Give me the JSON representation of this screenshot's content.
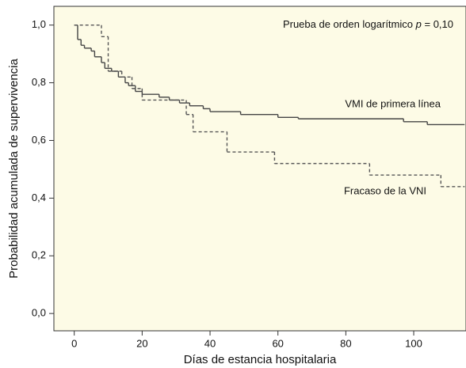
{
  "chart_data": {
    "type": "step",
    "xlabel": "Días de estancia hospitalaria",
    "ylabel": "Probabilidad acumulada de supervivencia",
    "annotation": {
      "text": "Prueba de orden logarítmico",
      "p_symbol": "p",
      "p_text": "= 0,10"
    },
    "xlim": [
      -6,
      115.4
    ],
    "ylim": [
      -0.06,
      1.065
    ],
    "xticks": [
      0,
      20,
      40,
      60,
      80,
      100
    ],
    "yticks": [
      {
        "value": 0,
        "label": "0,0"
      },
      {
        "value": 0.2,
        "label": "0,2"
      },
      {
        "value": 0.4,
        "label": "0,4"
      },
      {
        "value": 0.6,
        "label": "0,6"
      },
      {
        "value": 0.8,
        "label": "0,8"
      },
      {
        "value": 1,
        "label": "1,0"
      }
    ],
    "background": "#fdfbe6",
    "series": [
      {
        "name": "VMI de primera línea",
        "color": "#444444",
        "dashed": false,
        "x": [
          0,
          1,
          2,
          3,
          5,
          6,
          8,
          9,
          11,
          13,
          15,
          16,
          18,
          20,
          25,
          28,
          31,
          34,
          38,
          40,
          49,
          60,
          66,
          97,
          104,
          115
        ],
        "values": [
          1.0,
          0.95,
          0.93,
          0.92,
          0.91,
          0.89,
          0.87,
          0.85,
          0.84,
          0.82,
          0.8,
          0.79,
          0.77,
          0.76,
          0.75,
          0.74,
          0.73,
          0.72,
          0.71,
          0.7,
          0.69,
          0.68,
          0.675,
          0.665,
          0.655,
          0.655
        ]
      },
      {
        "name": "Fracaso de la VNI",
        "color": "#555555",
        "dashed": true,
        "x": [
          0,
          8,
          10,
          14,
          17,
          20,
          33,
          35,
          45,
          59,
          87,
          108,
          115
        ],
        "values": [
          1.0,
          0.96,
          0.84,
          0.82,
          0.78,
          0.74,
          0.69,
          0.63,
          0.56,
          0.52,
          0.48,
          0.44,
          0.44
        ]
      }
    ]
  }
}
